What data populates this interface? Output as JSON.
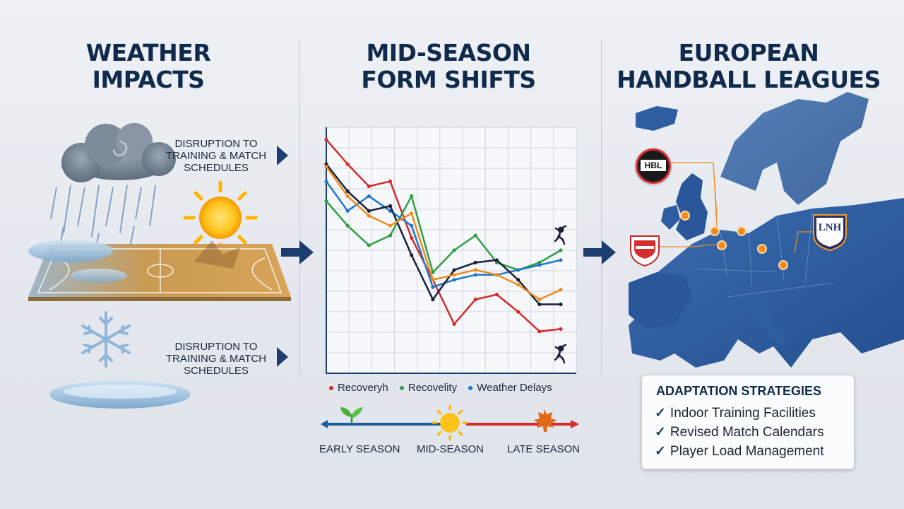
{
  "titles": {
    "weather": [
      "WEATHER",
      "IMPACTS"
    ],
    "midseason": [
      "MID-SEASON",
      "FORM SHIFTS"
    ],
    "leagues": [
      "EUROPEAN",
      "HANDBALL LEAGUES"
    ]
  },
  "captions": {
    "top": [
      "DISRUPTION TO",
      "TRAINING & MATCH",
      "SCHEDULES"
    ],
    "bottom": [
      "DISRUPTION TO",
      "TRAINING & MATCH",
      "SCHEDULES"
    ]
  },
  "chart_data": {
    "type": "line",
    "x": [
      1,
      2,
      3,
      4,
      5,
      6,
      7,
      8,
      9,
      10,
      11,
      12
    ],
    "series": [
      {
        "name": "Recoveryh",
        "color": "#d42b2b",
        "values": [
          95,
          85,
          76,
          78,
          55,
          38,
          20,
          30,
          32,
          25,
          17,
          18
        ]
      },
      {
        "name": "Recovelity",
        "color": "#2ea043",
        "values": [
          70,
          60,
          52,
          56,
          72,
          41,
          50,
          56,
          45,
          42,
          45,
          50
        ]
      },
      {
        "name": "Weather Delays",
        "color": "#1f78c8",
        "values": [
          78,
          66,
          72,
          66,
          60,
          35,
          38,
          40,
          40,
          42,
          44,
          46
        ]
      },
      {
        "name": "",
        "color": "#1a1f3a",
        "values": [
          85,
          74,
          66,
          68,
          48,
          30,
          42,
          45,
          46,
          38,
          28,
          28
        ]
      },
      {
        "name": "",
        "color": "#f08c1a",
        "values": [
          84,
          72,
          64,
          60,
          65,
          38,
          40,
          42,
          40,
          36,
          30,
          34
        ]
      }
    ],
    "ylim": [
      0,
      100
    ],
    "grid": true,
    "legend_position": "bottom"
  },
  "legend": [
    "Recoveryh",
    "Recovelity",
    "Weather Delays"
  ],
  "season_labels": [
    "EARLY SEASON",
    "MID-SEASON",
    "LATE SEASON"
  ],
  "map": {
    "league_badges": [
      "HBL",
      "LNH"
    ],
    "colors": {
      "land": "#2f5ea0",
      "dark_land": "#1f4583",
      "marker": "#f08c1a"
    }
  },
  "strategies": {
    "heading": "ADAPTATION STRATEGIES",
    "items": [
      "Indoor Training Facilities",
      "Revised Match Calendars",
      "Player Load Management"
    ]
  },
  "icons": [
    "rain-cloud-icon",
    "sun-icon",
    "snowflake-icon",
    "handball-court-icon",
    "sprout-icon",
    "maple-leaf-icon",
    "handball-player-icon"
  ]
}
